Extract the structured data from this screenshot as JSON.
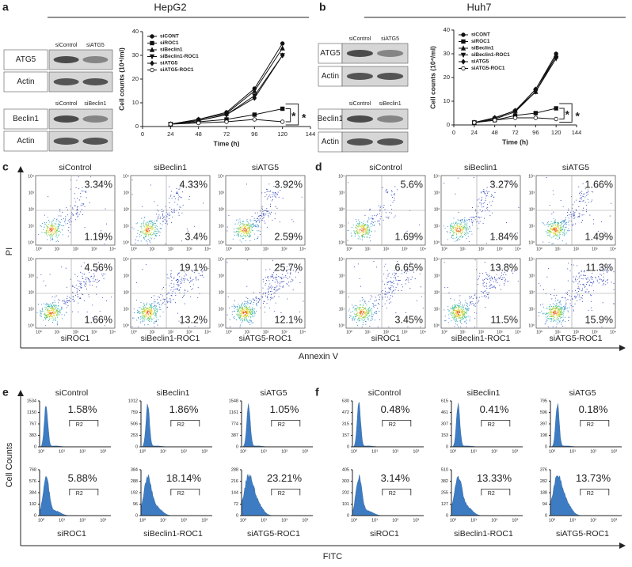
{
  "figure": {
    "panels": {
      "a": {
        "label": "a",
        "cell_line": "HepG2",
        "blots": [
          {
            "lanes": [
              "siControl",
              "siATG5"
            ],
            "proteins": [
              "ATG5",
              "Actin"
            ]
          },
          {
            "lanes": [
              "siControl",
              "siBeclin1"
            ],
            "proteins": [
              "Beclin1",
              "Actin"
            ]
          }
        ]
      },
      "b": {
        "label": "b",
        "cell_line": "Huh7",
        "blots": [
          {
            "lanes": [
              "siControl",
              "siATG5"
            ],
            "proteins": [
              "ATG5",
              "Actin"
            ]
          },
          {
            "lanes": [
              "siControl",
              "siBeclin1"
            ],
            "proteins": [
              "Beclin1",
              "Actin"
            ]
          }
        ]
      }
    },
    "flow": {
      "y_label": "PI",
      "x_label": "Annexin V",
      "ticks": [
        "10⁰",
        "10¹",
        "10²",
        "10³",
        "10⁴"
      ],
      "c": {
        "label": "c",
        "top_labels": [
          "siControl",
          "siBeclin1",
          "siATG5"
        ],
        "bottom_labels": [
          "siROC1",
          "siBeclin1-ROC1",
          "siATG5-ROC1"
        ],
        "upper_right": [
          [
            "3.34%",
            "4.33%",
            "3.92%"
          ],
          [
            "4.56%",
            "19.1%",
            "25.7%"
          ]
        ],
        "lower_right": [
          [
            "1.19%",
            "3.4%",
            "2.59%"
          ],
          [
            "1.66%",
            "13.2%",
            "12.1%"
          ]
        ]
      },
      "d": {
        "label": "d",
        "top_labels": [
          "siControl",
          "siBeclin1",
          "siATG5"
        ],
        "bottom_labels": [
          "siROC1",
          "siBeclin1-ROC1",
          "siATG5-ROC1"
        ],
        "upper_right": [
          [
            "5.6%",
            "3.27%",
            "1.66%"
          ],
          [
            "6.65%",
            "13.8%",
            "11.3%"
          ]
        ],
        "lower_right": [
          [
            "1.69%",
            "1.84%",
            "1.49%"
          ],
          [
            "3.45%",
            "11.5%",
            "15.9%"
          ]
        ]
      }
    },
    "histograms": {
      "y_label": "Cell Counts",
      "x_label": "FITC",
      "gate": "R2",
      "ticks": [
        "10⁰",
        "10¹",
        "10²",
        "10³"
      ],
      "e": {
        "label": "e",
        "top_labels": [
          "siControl",
          "siBeclin1",
          "siATG5"
        ],
        "bottom_labels": [
          "siROC1",
          "siBeclin1-ROC1",
          "siATG5-ROC1"
        ],
        "percent": [
          [
            "1.58%",
            "1.86%",
            "1.05%"
          ],
          [
            "5.88%",
            "18.14%",
            "23.21%"
          ]
        ],
        "yticks": [
          [
            [
              "1534",
              "1150",
              "767",
              "383",
              "0"
            ],
            [
              "1012",
              "759",
              "506",
              "253",
              "0"
            ],
            [
              "1548",
              "1161",
              "774",
              "387",
              "0"
            ]
          ],
          [
            [
              "768",
              "576",
              "384",
              "192",
              "0"
            ],
            [
              "384",
              "288",
              "192",
              "96",
              "0"
            ],
            [
              "288",
              "216",
              "144",
              "72",
              "0"
            ]
          ]
        ]
      },
      "f": {
        "label": "f",
        "top_labels": [
          "siControl",
          "siBeclin1",
          "siATG5"
        ],
        "bottom_labels": [
          "siROC1",
          "siBeclin1-ROC1",
          "siATG5-ROC1"
        ],
        "percent": [
          [
            "0.48%",
            "0.41%",
            "0.18%"
          ],
          [
            "3.14%",
            "13.33%",
            "13.73%"
          ]
        ],
        "yticks": [
          [
            [
              "630",
              "472",
              "315",
              "157",
              "0"
            ],
            [
              "615",
              "461",
              "307",
              "153",
              "0"
            ],
            [
              "795",
              "596",
              "397",
              "198",
              "0"
            ]
          ],
          [
            [
              "405",
              "303",
              "202",
              "101",
              "0"
            ],
            [
              "510",
              "382",
              "255",
              "127",
              "0"
            ],
            [
              "376",
              "282",
              "188",
              "94",
              "0"
            ]
          ]
        ]
      }
    }
  },
  "chart_data": [
    {
      "type": "line",
      "x_label": "Time (h)",
      "y_label": "Cell counts (10⁴/ml)",
      "x": [
        24,
        48,
        72,
        96,
        120
      ],
      "xlim": [
        0,
        144
      ],
      "xticks": [
        0,
        24,
        48,
        72,
        96,
        120,
        144
      ],
      "ylim": [
        0,
        40
      ],
      "yticks": [
        0,
        10,
        20,
        30,
        40
      ],
      "annotations": [
        "*",
        "*"
      ],
      "series": [
        {
          "name": "siCONT",
          "color": "#111111",
          "marker": "circle",
          "values": [
            1,
            3,
            6,
            16,
            35
          ]
        },
        {
          "name": "siROC1",
          "color": "#111111",
          "marker": "square",
          "values": [
            1,
            2,
            3,
            5,
            7.5
          ]
        },
        {
          "name": "siBeclin1",
          "color": "#111111",
          "marker": "triangle",
          "values": [
            1,
            3,
            5.5,
            15,
            33
          ]
        },
        {
          "name": "siBeclin1-ROC1",
          "color": "#111111",
          "marker": "triangle-down",
          "values": [
            1,
            2.5,
            5,
            13,
            30
          ]
        },
        {
          "name": "siATG5",
          "color": "#111111",
          "marker": "diamond",
          "values": [
            1,
            2.5,
            5,
            12,
            30
          ]
        },
        {
          "name": "siATG5-ROC1",
          "color": "#111111",
          "marker": "circle-open",
          "values": [
            1,
            1.5,
            2,
            3,
            2
          ]
        }
      ]
    },
    {
      "type": "line",
      "x_label": "Time (h)",
      "y_label": "Cell counts (10⁴/ml)",
      "x": [
        24,
        48,
        72,
        96,
        120
      ],
      "xlim": [
        0,
        144
      ],
      "xticks": [
        0,
        24,
        48,
        72,
        96,
        120,
        144
      ],
      "ylim": [
        0,
        40
      ],
      "yticks": [
        0,
        10,
        20,
        30,
        40
      ],
      "annotations": [
        "*",
        "*"
      ],
      "series": [
        {
          "name": "siCONT",
          "color": "#111111",
          "marker": "circle",
          "values": [
            1,
            3,
            6,
            15,
            30
          ]
        },
        {
          "name": "siROC1",
          "color": "#111111",
          "marker": "square",
          "values": [
            1,
            2,
            4,
            5,
            7
          ]
        },
        {
          "name": "siBeclin1",
          "color": "#111111",
          "marker": "triangle",
          "values": [
            1,
            3,
            6,
            14,
            29
          ]
        },
        {
          "name": "siBeclin1-ROC1",
          "color": "#111111",
          "marker": "triangle-down",
          "values": [
            1,
            2.5,
            5.5,
            14,
            28
          ]
        },
        {
          "name": "siATG5",
          "color": "#111111",
          "marker": "diamond",
          "values": [
            1,
            3,
            6,
            15,
            29
          ]
        },
        {
          "name": "siATG5-ROC1",
          "color": "#111111",
          "marker": "circle-open",
          "values": [
            1,
            2,
            3,
            3,
            2.5
          ]
        }
      ]
    }
  ]
}
